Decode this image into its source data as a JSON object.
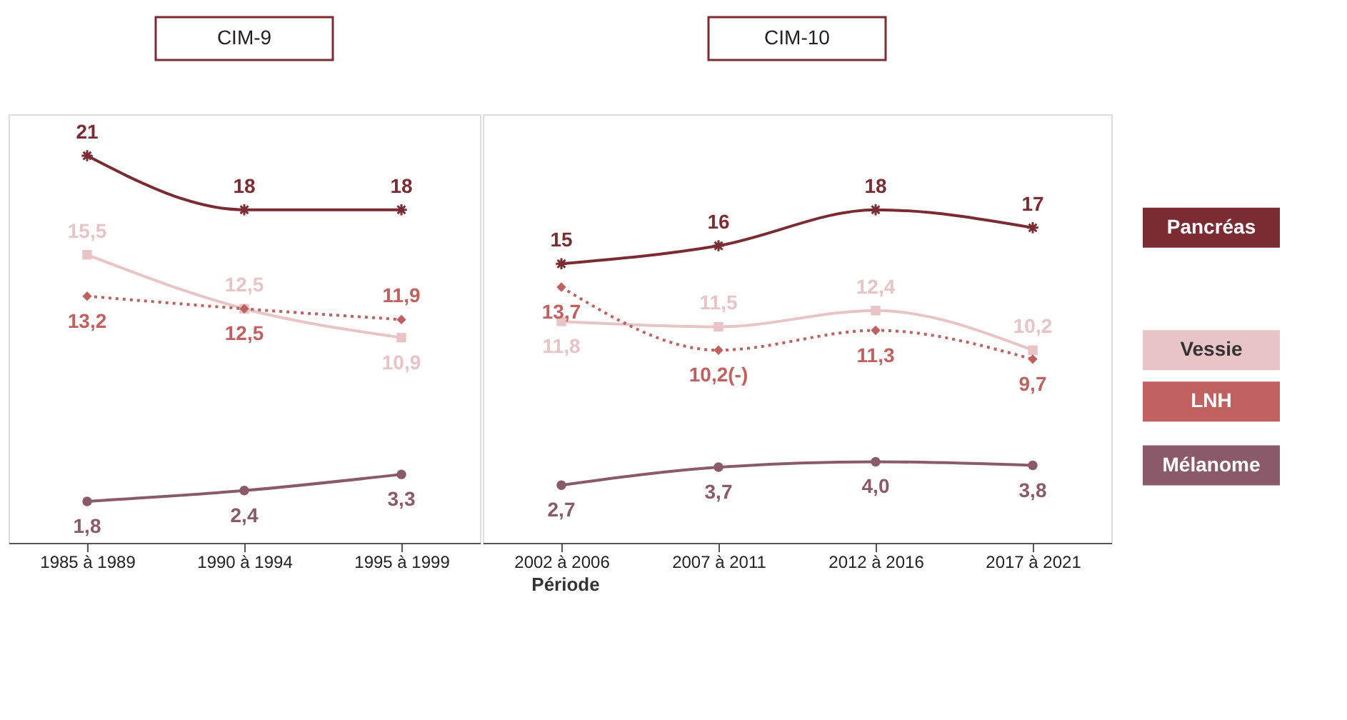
{
  "chart_data": [
    {
      "type": "line",
      "title": "CIM-9",
      "categories": [
        "1985 à 1989",
        "1990 à 1994",
        "1995 à 1999"
      ],
      "series": [
        {
          "color": "#7b2c33",
          "marker": "cross",
          "line_style": "solid",
          "values": [
            21,
            18,
            18
          ],
          "value_labels": [
            "21",
            "18",
            "18"
          ]
        },
        {
          "color": "#e8c4c6",
          "marker": "square",
          "line_style": "solid",
          "values": [
            15.5,
            12.5,
            10.9
          ],
          "value_labels": [
            "15,5",
            "12,5",
            "10,9"
          ]
        },
        {
          "color": "#c0605f",
          "marker": "diamond",
          "line_style": "dotted",
          "values": [
            13.2,
            12.5,
            11.9
          ],
          "value_labels": [
            "13,2",
            "12,5",
            "11,9"
          ]
        },
        {
          "color": "#8a5a6a",
          "marker": "circle",
          "line_style": "solid",
          "values": [
            1.8,
            2.4,
            3.3
          ],
          "value_labels": [
            "1,8",
            "2,4",
            "3,3"
          ]
        }
      ]
    },
    {
      "type": "line",
      "title": "CIM-10",
      "xlabel": "Période",
      "categories": [
        "2002 à 2006",
        "2007 à 2011",
        "2012 à 2016",
        "2017 à 2021"
      ],
      "series": [
        {
          "name": "Pancréas",
          "color": "#7b2c33",
          "marker": "cross",
          "line_style": "solid",
          "values": [
            15,
            16,
            18,
            17
          ],
          "value_labels": [
            "15",
            "16",
            "18",
            "17"
          ]
        },
        {
          "name": "Vessie",
          "color": "#e8c4c6",
          "marker": "square",
          "line_style": "solid",
          "values": [
            11.8,
            11.5,
            12.4,
            10.2
          ],
          "value_labels": [
            "11,8",
            "11,5",
            "12,4",
            "10,2"
          ]
        },
        {
          "name": "LNH",
          "color": "#c0605f",
          "marker": "diamond",
          "line_style": "dotted",
          "values": [
            13.7,
            10.2,
            11.3,
            9.7
          ],
          "value_labels": [
            "13,7",
            "10,2(-)",
            "11,3",
            "9,7"
          ]
        },
        {
          "name": "Mélanome",
          "color": "#8a5a6a",
          "marker": "circle",
          "line_style": "solid",
          "values": [
            2.7,
            3.7,
            4.0,
            3.8
          ],
          "value_labels": [
            "2,7",
            "3,7",
            "4,0",
            "3,8"
          ]
        }
      ]
    }
  ]
}
